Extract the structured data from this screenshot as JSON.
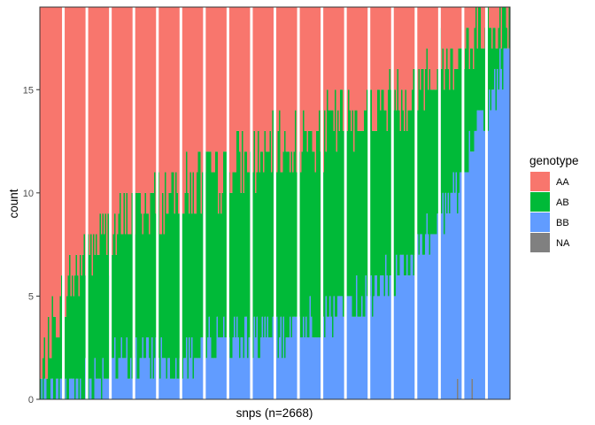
{
  "chart_data": {
    "type": "bar",
    "subtype": "stacked-per-snp",
    "xlabel": "snps (n=2668)",
    "ylabel": "count",
    "ylim": [
      0,
      19
    ],
    "yticks": [
      0,
      5,
      10,
      15
    ],
    "xticks": [],
    "total_per_snp": 19,
    "n_snps": 2668,
    "grid": false,
    "legend": {
      "title": "genotype",
      "position": "right",
      "entries": [
        "AA",
        "AB",
        "BB",
        "NA"
      ]
    },
    "stack_order_top_to_bottom": [
      "AA",
      "AB",
      "BB",
      "NA"
    ],
    "colors": {
      "AA": "#F8766D",
      "AB": "#00BA38",
      "BB": "#619CFF",
      "NA": "#808080"
    },
    "profile": {
      "description": "SNPs sorted by genotype composition; approximate boundaries read from the figure (count units)",
      "x_fraction": [
        0.0,
        0.05,
        0.1,
        0.2,
        0.3,
        0.4,
        0.5,
        0.6,
        0.7,
        0.8,
        0.85,
        0.9,
        0.95,
        1.0
      ],
      "AA_lower_boundary": [
        1,
        5,
        7,
        9,
        10,
        11,
        12,
        13,
        14,
        15,
        16,
        17,
        18,
        19
      ],
      "BB_upper_boundary": [
        0,
        0.5,
        1,
        2,
        2,
        3,
        3,
        4,
        5,
        7,
        9,
        11,
        14,
        17
      ]
    }
  }
}
